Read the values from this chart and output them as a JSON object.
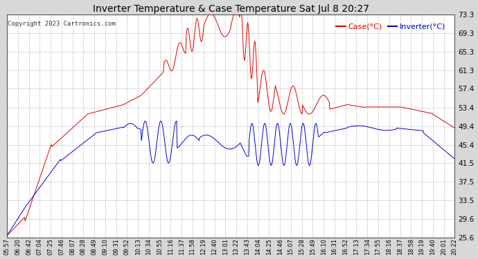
{
  "title": "Inverter Temperature & Case Temperature Sat Jul 8 20:27",
  "copyright": "Copyright 2023 Cartronics.com",
  "legend_case": "Case(°C)",
  "legend_inverter": "Inverter(°C)",
  "yticks": [
    25.6,
    29.6,
    33.5,
    37.5,
    41.5,
    45.4,
    49.4,
    53.4,
    57.4,
    61.3,
    65.3,
    69.3,
    73.3
  ],
  "ymin": 25.6,
  "ymax": 73.3,
  "bg_color": "#d8d8d8",
  "plot_bg_color": "#ffffff",
  "title_color": "#000000",
  "grid_color": "#aaaaaa",
  "case_color": "#dd0000",
  "inverter_color": "#0000cc",
  "xtick_labels": [
    "05:57",
    "06:20",
    "06:42",
    "07:04",
    "07:25",
    "07:46",
    "08:07",
    "08:28",
    "08:49",
    "09:10",
    "09:31",
    "09:52",
    "10:13",
    "10:34",
    "10:55",
    "11:16",
    "11:37",
    "11:58",
    "12:19",
    "12:40",
    "13:01",
    "13:22",
    "13:43",
    "14:04",
    "14:25",
    "14:46",
    "15:07",
    "15:28",
    "15:49",
    "16:10",
    "16:31",
    "16:52",
    "17:13",
    "17:34",
    "17:55",
    "18:16",
    "18:37",
    "18:58",
    "19:19",
    "19:40",
    "20:01",
    "20:22"
  ],
  "n_points": 840
}
